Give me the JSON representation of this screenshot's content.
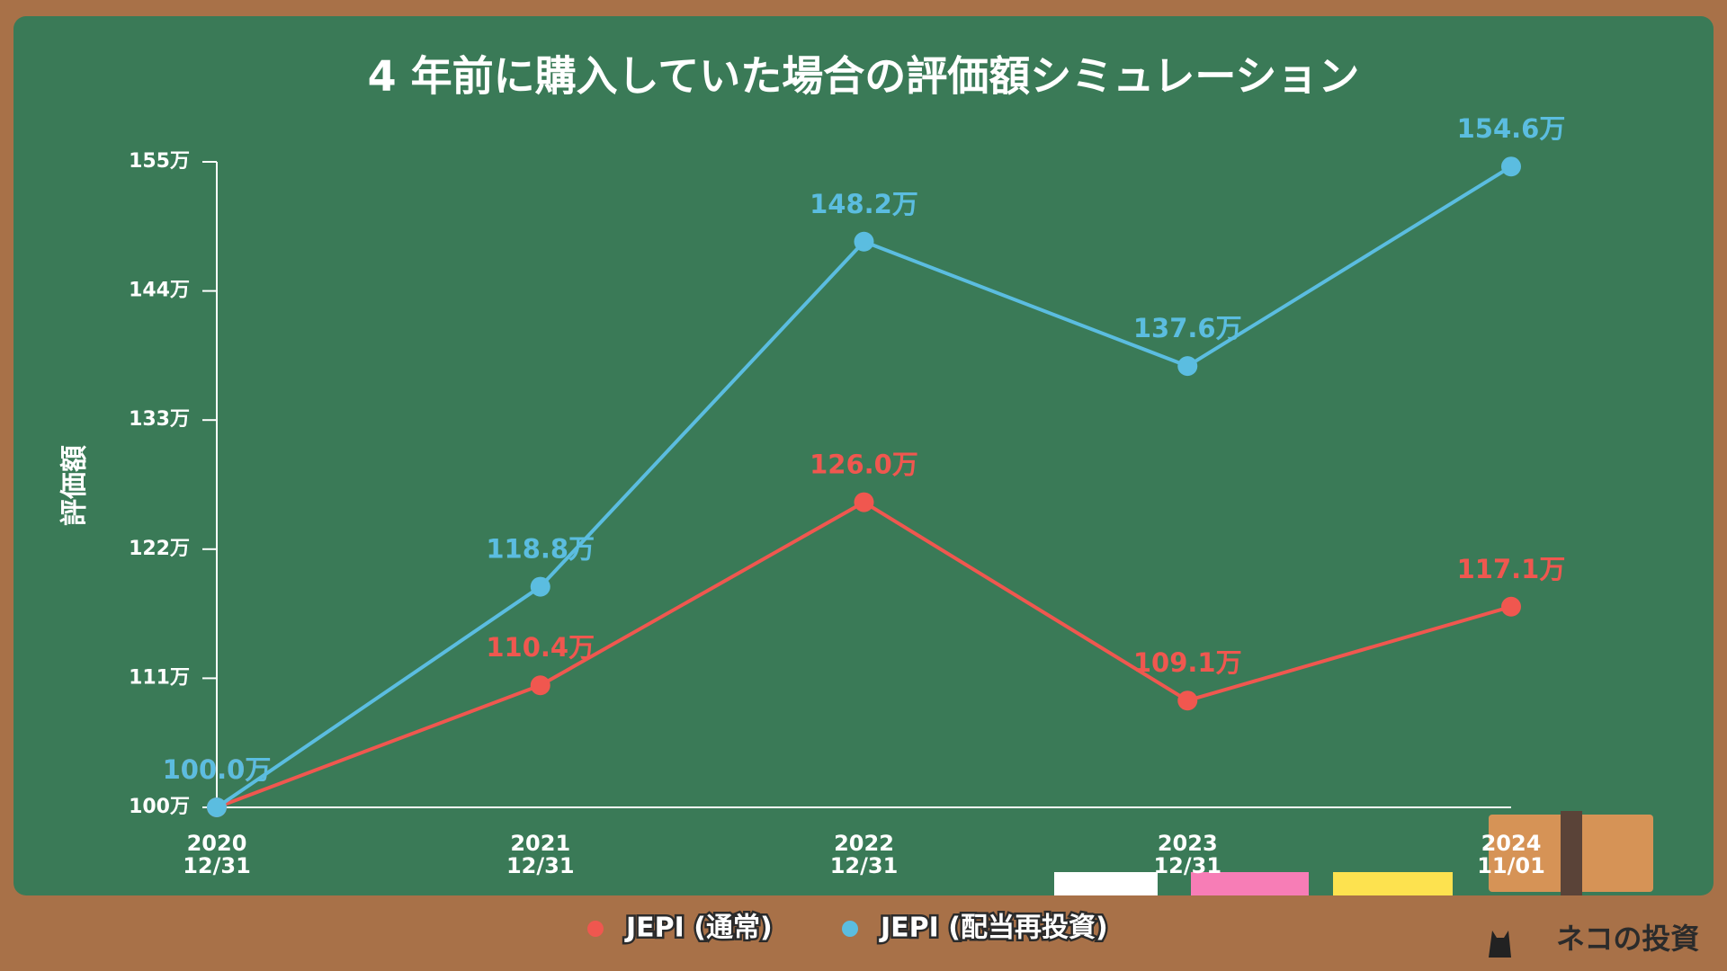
{
  "chart_data": {
    "type": "line",
    "title": "4 年前に購入していた場合の評価額シミュレーション",
    "y_label": "評価額",
    "categories": [
      "2020\n12/31",
      "2021\n12/31",
      "2022\n12/31",
      "2023\n12/31",
      "2024\n11/01"
    ],
    "series": [
      {
        "name": "JEPI (通常)",
        "color": "#f0574f",
        "values": [
          100.0,
          110.4,
          126.0,
          109.1,
          117.1
        ],
        "value_labels": [
          "100.0万",
          "110.4万",
          "126.0万",
          "109.1万",
          "117.1万"
        ]
      },
      {
        "name": "JEPI (配当再投資)",
        "color": "#5bbde0",
        "values": [
          100.0,
          118.8,
          148.2,
          137.6,
          154.6
        ],
        "value_labels": [
          "100.0万",
          "118.8万",
          "148.2万",
          "137.6万",
          "154.6万"
        ]
      }
    ],
    "ylim": [
      100,
      155
    ],
    "yticks": [
      {
        "value": 100,
        "label": "100万"
      },
      {
        "value": 111,
        "label": "111万"
      },
      {
        "value": 122,
        "label": "122万"
      },
      {
        "value": 133,
        "label": "133万"
      },
      {
        "value": 144,
        "label": "144万"
      },
      {
        "value": 155,
        "label": "155万"
      }
    ],
    "grid": false,
    "legend": "bottom"
  },
  "brand": "ネコの投資"
}
